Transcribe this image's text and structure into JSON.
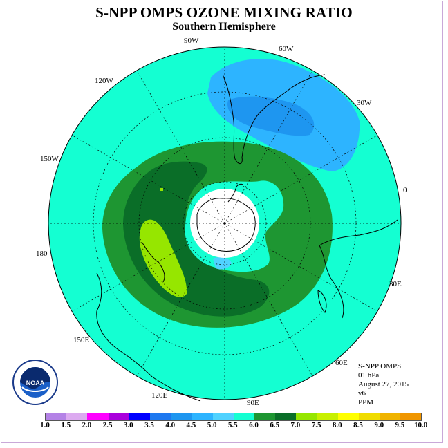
{
  "title": "S-NPP OMPS OZONE MIXING RATIO",
  "subtitle": "Southern Hemisphere",
  "longitude_labels": {
    "lon_90w": "90W",
    "lon_60w": "60W",
    "lon_120w": "120W",
    "lon_30w": "30W",
    "lon_150w": "150W",
    "lon_0": "0",
    "lon_180": "180",
    "lon_30e": "30E",
    "lon_150e": "150E",
    "lon_60e": "60E",
    "lon_120e": "120E",
    "lon_90e": "90E"
  },
  "info": {
    "instrument": "S-NPP OMPS",
    "level": "01 hPa",
    "date": "August 27, 2015",
    "version": "v6",
    "units": "PPM"
  },
  "logo_text": "NOAA",
  "colorbar": {
    "colors": [
      "#b482e6",
      "#dcaaf0",
      "#ff00ff",
      "#aa00dc",
      "#0000ff",
      "#1e78f0",
      "#1e96f0",
      "#2db4ff",
      "#50d2ff",
      "#14ffd2",
      "#1e9632",
      "#0a6e28",
      "#96e600",
      "#c8f000",
      "#ffff00",
      "#f0dc00",
      "#f0b400",
      "#f09600",
      "#ff6400",
      "#ff0000",
      "#dc0000",
      "#825032"
    ],
    "tick_labels": [
      "1.0",
      "1.5",
      "2.0",
      "2.5",
      "3.0",
      "3.5",
      "4.0",
      "4.5",
      "5.0",
      "5.5",
      "6.0",
      "6.5",
      "7.0",
      "7.5",
      "8.0",
      "8.5",
      "9.0",
      "9.5",
      "10.0"
    ]
  },
  "legend_colors": {
    "level_4_0": "#2db4ff",
    "level_3_5": "#1e96f0",
    "level_5_0": "#14ffd2",
    "level_5_5": "#1e9632",
    "level_6_0": "#0a6e28",
    "level_6_5": "#96e600"
  }
}
